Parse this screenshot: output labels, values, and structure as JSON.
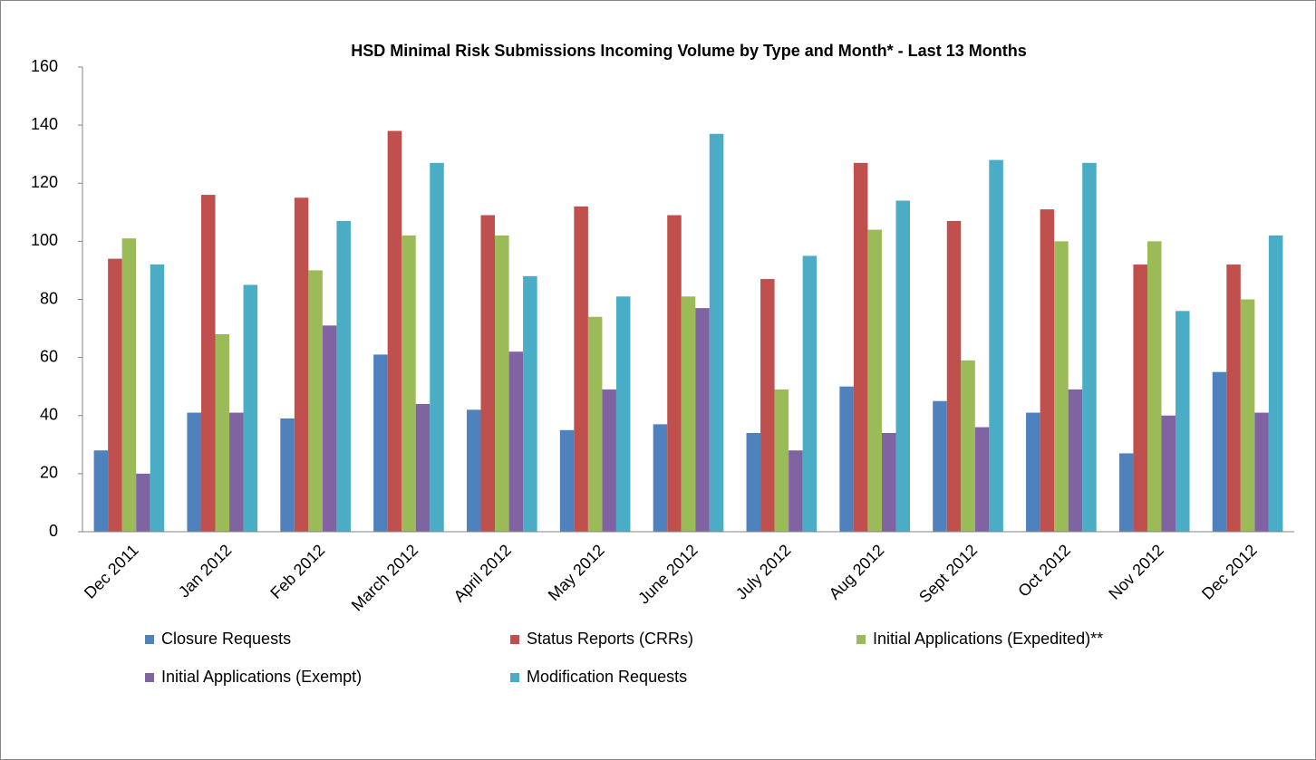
{
  "chart_data": {
    "type": "bar",
    "title": "HSD Minimal Risk Submissions Incoming Volume by Type and Month* - Last 13 Months",
    "categories": [
      "Dec 2011",
      "Jan 2012",
      "Feb 2012",
      "March 2012",
      "April 2012",
      "May 2012",
      "June 2012",
      "July 2012",
      "Aug 2012",
      "Sept 2012",
      "Oct 2012",
      "Nov 2012",
      "Dec 2012"
    ],
    "series": [
      {
        "name": "Closure Requests",
        "color": "#4F81BD",
        "values": [
          28,
          41,
          39,
          61,
          42,
          35,
          37,
          34,
          50,
          45,
          41,
          27,
          55
        ]
      },
      {
        "name": "Status Reports (CRRs)",
        "color": "#C0504D",
        "values": [
          94,
          116,
          115,
          138,
          109,
          112,
          109,
          87,
          127,
          107,
          111,
          92,
          92
        ]
      },
      {
        "name": "Initial Applications (Expedited)**",
        "color": "#9BBB59",
        "values": [
          101,
          68,
          90,
          102,
          102,
          74,
          81,
          49,
          104,
          59,
          100,
          100,
          80
        ]
      },
      {
        "name": "Initial Applications (Exempt)",
        "color": "#8064A2",
        "values": [
          20,
          41,
          71,
          44,
          62,
          49,
          77,
          28,
          34,
          36,
          49,
          40,
          41
        ]
      },
      {
        "name": "Modification Requests",
        "color": "#4BACC6",
        "values": [
          92,
          85,
          107,
          127,
          88,
          81,
          137,
          95,
          114,
          128,
          127,
          76,
          102
        ]
      }
    ],
    "ylim": [
      0,
      160
    ],
    "yticks": [
      0,
      20,
      40,
      60,
      80,
      100,
      120,
      140,
      160
    ],
    "grid": false,
    "legend": "bottom"
  }
}
